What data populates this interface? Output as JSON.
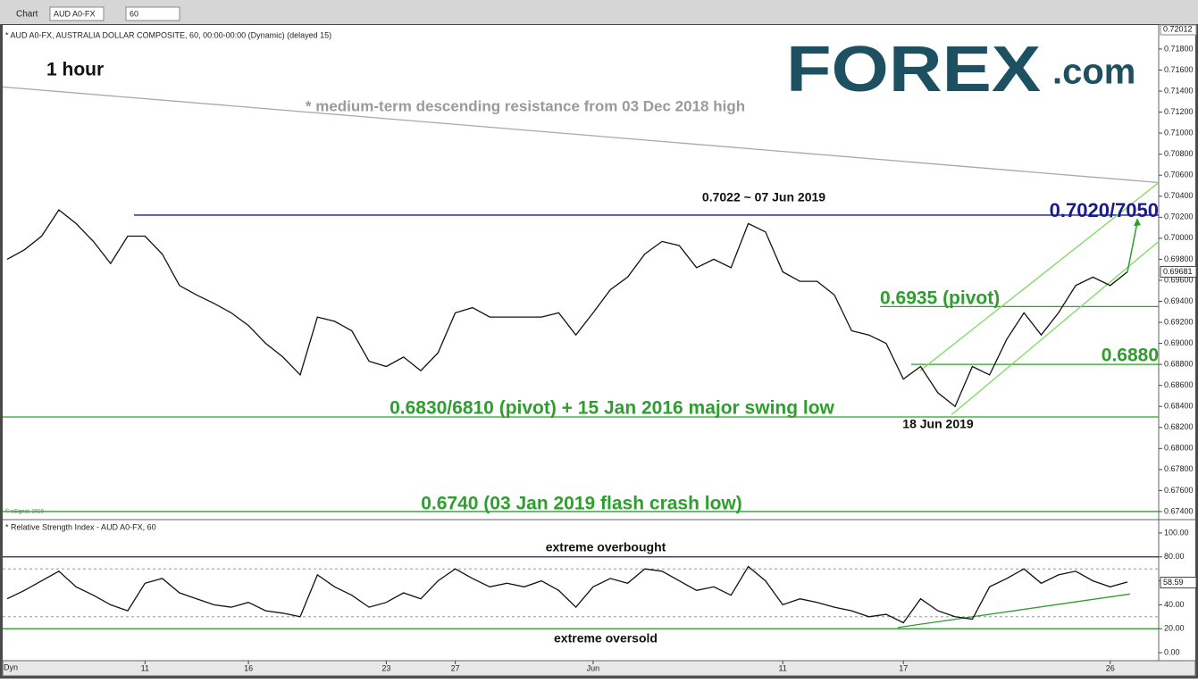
{
  "toolbar": {
    "tab": "Chart",
    "symbol": "AUD A0-FX",
    "interval": "60"
  },
  "logo": {
    "main": "FOREX",
    "suffix": ".com"
  },
  "copyright": "© eSignal, 2019",
  "footer_label": "Dyn",
  "chart_data": [
    {
      "type": "line",
      "title": "* AUD A0-FX, AUSTRALIA DOLLAR COMPOSITE, 60, 00:00-00:00 (Dynamic) (delayed 15)",
      "categories": [
        null,
        null,
        null,
        null,
        null,
        null,
        null,
        null,
        "11",
        null,
        null,
        null,
        null,
        null,
        "16",
        null,
        null,
        null,
        null,
        null,
        null,
        null,
        "23",
        null,
        null,
        null,
        "27",
        null,
        null,
        null,
        null,
        null,
        null,
        null,
        "Jun",
        null,
        null,
        null,
        null,
        null,
        null,
        null,
        null,
        null,
        null,
        "11",
        null,
        null,
        null,
        null,
        null,
        null,
        "17",
        null,
        null,
        null,
        null,
        null,
        null,
        null,
        null,
        null,
        null,
        null,
        "26",
        null
      ],
      "values": [
        0.698,
        0.6989,
        0.7002,
        0.7027,
        0.7014,
        0.6997,
        0.6976,
        0.7002,
        0.7002,
        0.6985,
        0.6955,
        0.6946,
        0.6938,
        0.6929,
        0.6917,
        0.69,
        0.6887,
        0.687,
        0.6925,
        0.6921,
        0.6912,
        0.6883,
        0.6878,
        0.6887,
        0.6874,
        0.6891,
        0.6929,
        0.6934,
        0.6925,
        0.6925,
        0.6925,
        0.6925,
        0.6929,
        0.6908,
        0.6929,
        0.6951,
        0.6963,
        0.6985,
        0.6997,
        0.6993,
        0.6972,
        0.698,
        0.6972,
        0.7014,
        0.7006,
        0.6968,
        0.6959,
        0.6959,
        0.6946,
        0.6912,
        0.6908,
        0.69,
        0.6866,
        0.6878,
        0.6853,
        0.684,
        0.6878,
        0.687,
        0.6904,
        0.6929,
        0.6908,
        0.6929,
        0.6955,
        0.6963,
        0.6955,
        0.6968
      ],
      "color": "#111111",
      "ylim": [
        0.6734,
        0.72012
      ],
      "yticks": [
        {
          "value": 0.718,
          "label": "0.71800"
        },
        {
          "value": 0.716,
          "label": "0.71600"
        },
        {
          "value": 0.714,
          "label": "0.71400"
        },
        {
          "value": 0.712,
          "label": "0.71200"
        },
        {
          "value": 0.71,
          "label": "0.71000"
        },
        {
          "value": 0.708,
          "label": "0.70800"
        },
        {
          "value": 0.706,
          "label": "0.70600"
        },
        {
          "value": 0.704,
          "label": "0.70400"
        },
        {
          "value": 0.702,
          "label": "0.70200"
        },
        {
          "value": 0.7,
          "label": "0.70000"
        },
        {
          "value": 0.698,
          "label": "0.69800"
        },
        {
          "value": 0.696,
          "label": "0.69600"
        },
        {
          "value": 0.694,
          "label": "0.69400"
        },
        {
          "value": 0.692,
          "label": "0.69200"
        },
        {
          "value": 0.69,
          "label": "0.69000"
        },
        {
          "value": 0.688,
          "label": "0.68800"
        },
        {
          "value": 0.686,
          "label": "0.68600"
        },
        {
          "value": 0.684,
          "label": "0.68400"
        },
        {
          "value": 0.682,
          "label": "0.68200"
        },
        {
          "value": 0.68,
          "label": "0.68000"
        },
        {
          "value": 0.678,
          "label": "0.67800"
        },
        {
          "value": 0.676,
          "label": "0.67600"
        },
        {
          "value": 0.674,
          "label": "0.67400"
        }
      ],
      "last": 0.69681,
      "levels": [
        {
          "value": 0.7022,
          "color": "#1a1a8c"
        },
        {
          "value": 0.6935,
          "color": "#2e9e2e"
        },
        {
          "value": 0.688,
          "color": "#2e9e2e"
        },
        {
          "value": 0.683,
          "color": "#2e9e2e"
        },
        {
          "value": 0.674,
          "color": "#2e9e2e"
        }
      ],
      "trend_lines": [
        {
          "values": [
            0.7144,
            0.7053
          ],
          "color": "#a8a8a8"
        },
        {
          "values": [
            0.6832,
            0.6997
          ],
          "color": "#7ddc5f"
        },
        {
          "values": [
            0.6874,
            0.7053
          ],
          "color": "#7ddc5f"
        }
      ],
      "target": 0.7015,
      "target_color": "#2e9e2e",
      "annotations": [
        {
          "text": "1 hour",
          "color": "#111111"
        },
        {
          "text": "* medium-term descending resistance from 03 Dec 2018 high",
          "color": "#9a9a9a"
        },
        {
          "text": "0.7022 ~ 07 Jun 2019",
          "color": "#111111"
        },
        {
          "text": "0.7020/7050",
          "color": "#1a1a8c"
        },
        {
          "text": "0.6935 (pivot)",
          "color": "#2e9e2e"
        },
        {
          "text": "0.6880",
          "color": "#2e9e2e"
        },
        {
          "text": "0.6830/6810 (pivot) + 15 Jan 2016 major swing low",
          "color": "#2e9e2e"
        },
        {
          "text": "18 Jun 2019",
          "color": "#111111"
        },
        {
          "text": "0.6740 (03 Jan 2019 flash crash low)",
          "color": "#2e9e2e"
        }
      ]
    },
    {
      "type": "line",
      "title": "* Relative Strength Index - AUD A0-FX, 60",
      "values": [
        45,
        52,
        60,
        68,
        55,
        48,
        40,
        35,
        58,
        62,
        50,
        45,
        40,
        38,
        42,
        35,
        33,
        30,
        65,
        55,
        48,
        38,
        42,
        50,
        45,
        60,
        70,
        62,
        55,
        58,
        55,
        60,
        52,
        38,
        55,
        62,
        58,
        70,
        68,
        60,
        52,
        55,
        48,
        72,
        60,
        40,
        45,
        42,
        38,
        35,
        30,
        32,
        25,
        45,
        35,
        30,
        28,
        55,
        62,
        70,
        58,
        65,
        68,
        60,
        55,
        59
      ],
      "color": "#111111",
      "ylim": [
        -6.7,
        110.4
      ],
      "yticks": [
        {
          "value": 100,
          "label": "100.00"
        },
        {
          "value": 80,
          "label": "80.00"
        },
        {
          "value": 60,
          "label": "60.00"
        },
        {
          "value": 40,
          "label": "40.00"
        },
        {
          "value": 20,
          "label": "20.00"
        },
        {
          "value": 0,
          "label": "0.00"
        }
      ],
      "last": 58.59,
      "levels": [
        {
          "value": 80,
          "color": "#1a1a8c"
        },
        {
          "value": 20,
          "color": "#2e9e2e"
        },
        {
          "value": 70,
          "color": "#888888",
          "dashed": true
        },
        {
          "value": 30,
          "color": "#888888",
          "dashed": true
        }
      ],
      "trend_lines": [
        {
          "values": [
            21,
            49
          ],
          "color": "#2e9e2e"
        }
      ],
      "annotations": [
        {
          "text": "extreme overbought",
          "color": "#111111"
        },
        {
          "text": "extreme oversold",
          "color": "#111111"
        }
      ]
    }
  ]
}
